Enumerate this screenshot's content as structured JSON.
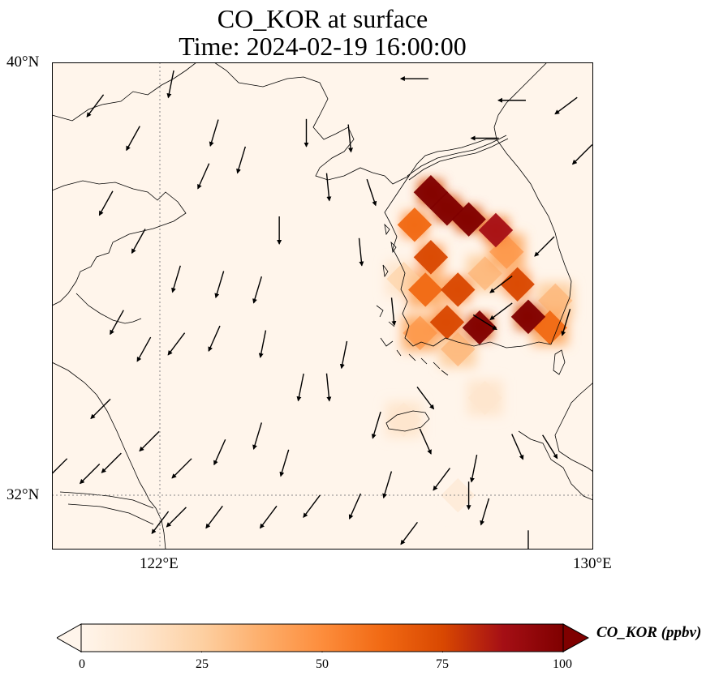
{
  "title": {
    "line1": "CO_KOR at surface",
    "line2": "Time: 2024-02-19 16:00:00"
  },
  "map": {
    "extent": {
      "lon_min": 120,
      "lon_max": 130,
      "lat_min": 31,
      "lat_max": 40
    },
    "lat_ticks": [
      {
        "value": 40,
        "label": "40°N"
      },
      {
        "value": 32,
        "label": "32°N"
      }
    ],
    "lon_ticks": [
      {
        "value": 122,
        "label": "122°E"
      },
      {
        "value": 130,
        "label": "130°E"
      }
    ],
    "gridline_lon": 122,
    "gridline_lat": 32,
    "background_color": "#fff5eb"
  },
  "colorbar": {
    "label": "CO_KOR (ppbv)",
    "min": 0,
    "max": 100,
    "ticks": [
      "0",
      "25",
      "50",
      "75",
      "100"
    ],
    "colors": [
      "#fff5eb",
      "#fee6ce",
      "#fdd0a2",
      "#fdae6b",
      "#fd8d3c",
      "#f16913",
      "#d94801",
      "#a50f15",
      "#7f0000"
    ],
    "extend": "both"
  },
  "field": {
    "variable": "CO_KOR",
    "units": "ppbv",
    "hotspots": [
      {
        "lon": 127.3,
        "lat": 37.3,
        "value": 100
      },
      {
        "lon": 127.7,
        "lat": 37.1,
        "value": 100
      },
      {
        "lon": 127.0,
        "lat": 37.6,
        "value": 100
      },
      {
        "lon": 128.2,
        "lat": 36.9,
        "value": 90
      },
      {
        "lon": 126.7,
        "lat": 37.0,
        "value": 65
      },
      {
        "lon": 127.0,
        "lat": 36.4,
        "value": 70
      },
      {
        "lon": 127.5,
        "lat": 35.8,
        "value": 75
      },
      {
        "lon": 128.6,
        "lat": 35.9,
        "value": 80
      },
      {
        "lon": 126.9,
        "lat": 35.8,
        "value": 60
      },
      {
        "lon": 127.3,
        "lat": 35.2,
        "value": 70
      },
      {
        "lon": 127.9,
        "lat": 35.1,
        "value": 100
      },
      {
        "lon": 128.8,
        "lat": 35.3,
        "value": 100
      },
      {
        "lon": 129.2,
        "lat": 35.1,
        "value": 60
      },
      {
        "lon": 126.8,
        "lat": 35.0,
        "value": 45
      },
      {
        "lon": 127.5,
        "lat": 34.7,
        "value": 35
      },
      {
        "lon": 129.3,
        "lat": 35.6,
        "value": 40
      },
      {
        "lon": 126.5,
        "lat": 33.4,
        "value": 12
      },
      {
        "lon": 128.0,
        "lat": 33.8,
        "value": 14
      },
      {
        "lon": 127.5,
        "lat": 32.0,
        "value": 8
      },
      {
        "lon": 128.4,
        "lat": 36.5,
        "value": 45
      },
      {
        "lon": 128.0,
        "lat": 36.1,
        "value": 40
      },
      {
        "lon": 126.5,
        "lat": 36.0,
        "value": 25
      }
    ]
  },
  "wind_vectors": [
    {
      "lon": 120.8,
      "lat": 39.2,
      "u": -0.6,
      "v": -0.8
    },
    {
      "lon": 121.5,
      "lat": 38.6,
      "u": -0.5,
      "v": -0.9
    },
    {
      "lon": 122.2,
      "lat": 39.6,
      "u": -0.2,
      "v": -1.0
    },
    {
      "lon": 123.0,
      "lat": 38.7,
      "u": -0.3,
      "v": -1.0
    },
    {
      "lon": 122.8,
      "lat": 37.9,
      "u": -0.4,
      "v": -0.9
    },
    {
      "lon": 123.5,
      "lat": 38.2,
      "u": -0.3,
      "v": -1.0
    },
    {
      "lon": 124.7,
      "lat": 38.7,
      "u": 0.0,
      "v": -1.0
    },
    {
      "lon": 125.5,
      "lat": 38.6,
      "u": 0.1,
      "v": -1.0
    },
    {
      "lon": 125.1,
      "lat": 37.7,
      "u": 0.1,
      "v": -1.0
    },
    {
      "lon": 125.9,
      "lat": 37.6,
      "u": 0.3,
      "v": -0.9
    },
    {
      "lon": 126.7,
      "lat": 39.7,
      "u": -1.0,
      "v": 0.0
    },
    {
      "lon": 128.0,
      "lat": 38.6,
      "u": -1.0,
      "v": 0.0
    },
    {
      "lon": 128.5,
      "lat": 39.3,
      "u": -1.0,
      "v": 0.0
    },
    {
      "lon": 129.5,
      "lat": 39.2,
      "u": -0.8,
      "v": -0.6
    },
    {
      "lon": 129.8,
      "lat": 38.3,
      "u": -0.7,
      "v": -0.7
    },
    {
      "lon": 121.0,
      "lat": 37.4,
      "u": -0.5,
      "v": -0.9
    },
    {
      "lon": 121.6,
      "lat": 36.7,
      "u": -0.5,
      "v": -0.9
    },
    {
      "lon": 122.3,
      "lat": 36.0,
      "u": -0.3,
      "v": -1.0
    },
    {
      "lon": 123.1,
      "lat": 35.9,
      "u": -0.3,
      "v": -1.0
    },
    {
      "lon": 123.8,
      "lat": 35.8,
      "u": -0.3,
      "v": -1.0
    },
    {
      "lon": 124.2,
      "lat": 36.9,
      "u": 0.0,
      "v": -1.0
    },
    {
      "lon": 125.7,
      "lat": 36.5,
      "u": 0.1,
      "v": -1.0
    },
    {
      "lon": 121.2,
      "lat": 35.2,
      "u": -0.5,
      "v": -0.9
    },
    {
      "lon": 121.7,
      "lat": 34.7,
      "u": -0.5,
      "v": -0.9
    },
    {
      "lon": 122.3,
      "lat": 34.8,
      "u": -0.6,
      "v": -0.8
    },
    {
      "lon": 123.0,
      "lat": 34.9,
      "u": -0.4,
      "v": -0.9
    },
    {
      "lon": 123.9,
      "lat": 34.8,
      "u": -0.2,
      "v": -1.0
    },
    {
      "lon": 125.4,
      "lat": 34.6,
      "u": -0.2,
      "v": -1.0
    },
    {
      "lon": 124.6,
      "lat": 34.0,
      "u": -0.2,
      "v": -1.0
    },
    {
      "lon": 125.1,
      "lat": 34.0,
      "u": 0.1,
      "v": -1.0
    },
    {
      "lon": 120.9,
      "lat": 33.6,
      "u": -0.7,
      "v": -0.7
    },
    {
      "lon": 121.8,
      "lat": 33.0,
      "u": -0.7,
      "v": -0.7
    },
    {
      "lon": 122.4,
      "lat": 32.5,
      "u": -0.7,
      "v": -0.7
    },
    {
      "lon": 123.1,
      "lat": 32.8,
      "u": -0.4,
      "v": -0.9
    },
    {
      "lon": 123.8,
      "lat": 33.1,
      "u": -0.3,
      "v": -1.0
    },
    {
      "lon": 124.3,
      "lat": 32.6,
      "u": -0.3,
      "v": -1.0
    },
    {
      "lon": 120.7,
      "lat": 32.4,
      "u": -0.7,
      "v": -0.7
    },
    {
      "lon": 121.1,
      "lat": 32.6,
      "u": -0.7,
      "v": -0.7
    },
    {
      "lon": 120.1,
      "lat": 32.5,
      "u": -0.7,
      "v": -0.7
    },
    {
      "lon": 122.0,
      "lat": 31.5,
      "u": -0.6,
      "v": -0.8
    },
    {
      "lon": 122.3,
      "lat": 31.6,
      "u": -0.7,
      "v": -0.7
    },
    {
      "lon": 123.0,
      "lat": 31.6,
      "u": -0.6,
      "v": -0.8
    },
    {
      "lon": 124.0,
      "lat": 31.6,
      "u": -0.6,
      "v": -0.8
    },
    {
      "lon": 124.8,
      "lat": 31.8,
      "u": -0.6,
      "v": -0.8
    },
    {
      "lon": 125.6,
      "lat": 31.8,
      "u": -0.4,
      "v": -0.9
    },
    {
      "lon": 126.2,
      "lat": 32.2,
      "u": -0.3,
      "v": -1.0
    },
    {
      "lon": 127.2,
      "lat": 32.3,
      "u": -0.6,
      "v": -0.8
    },
    {
      "lon": 126.6,
      "lat": 31.3,
      "u": -0.6,
      "v": -0.8
    },
    {
      "lon": 128.0,
      "lat": 31.7,
      "u": -0.3,
      "v": -1.0
    },
    {
      "lon": 128.8,
      "lat": 31.1,
      "u": 0.0,
      "v": -1.0
    },
    {
      "lon": 126.3,
      "lat": 35.4,
      "u": 0.1,
      "v": -1.0
    },
    {
      "lon": 126.9,
      "lat": 33.0,
      "u": 0.4,
      "v": -0.9
    },
    {
      "lon": 127.8,
      "lat": 32.5,
      "u": -0.2,
      "v": -1.0
    },
    {
      "lon": 129.5,
      "lat": 35.2,
      "u": -0.3,
      "v": -1.0
    },
    {
      "lon": 128.3,
      "lat": 35.9,
      "u": -0.8,
      "v": -0.6
    },
    {
      "lon": 129.1,
      "lat": 36.6,
      "u": -0.7,
      "v": -0.7
    },
    {
      "lon": 126.9,
      "lat": 33.8,
      "u": 0.6,
      "v": -0.8
    },
    {
      "lon": 126.0,
      "lat": 33.3,
      "u": -0.3,
      "v": -1.0
    },
    {
      "lon": 128.6,
      "lat": 32.9,
      "u": 0.4,
      "v": -0.9
    },
    {
      "lon": 129.2,
      "lat": 32.9,
      "u": 0.5,
      "v": -0.8
    },
    {
      "lon": 128.3,
      "lat": 35.4,
      "u": -0.8,
      "v": -0.6
    },
    {
      "lon": 128.0,
      "lat": 35.2,
      "u": 0.8,
      "v": -0.5
    },
    {
      "lon": 127.7,
      "lat": 32.0,
      "u": 0.0,
      "v": -1.0
    }
  ]
}
